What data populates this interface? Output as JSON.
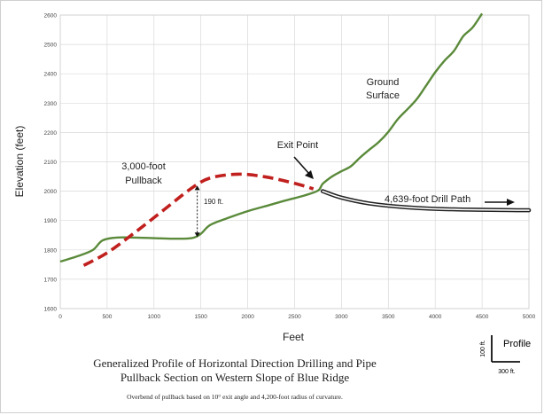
{
  "chart_data": {
    "type": "line",
    "xlabel": "Feet",
    "ylabel": "Elevation (feet)",
    "xlim": [
      0,
      5000
    ],
    "ylim": [
      1600,
      2600
    ],
    "xticks": [
      "0",
      "500",
      "1000",
      "1500",
      "2000",
      "2500",
      "3000",
      "3500",
      "4000",
      "4500",
      "5000"
    ],
    "yticks": [
      "1600",
      "1700",
      "1800",
      "1900",
      "2000",
      "2100",
      "2200",
      "2300",
      "2400",
      "2500",
      "2600"
    ],
    "grid": true,
    "series": [
      {
        "name": "Ground Surface",
        "color": "#5a8a3a",
        "style": "solid",
        "points": [
          [
            0,
            1760
          ],
          [
            200,
            1780
          ],
          [
            350,
            1800
          ],
          [
            450,
            1832
          ],
          [
            600,
            1842
          ],
          [
            800,
            1842
          ],
          [
            1000,
            1840
          ],
          [
            1200,
            1838
          ],
          [
            1400,
            1840
          ],
          [
            1500,
            1855
          ],
          [
            1600,
            1885
          ],
          [
            1800,
            1910
          ],
          [
            2000,
            1932
          ],
          [
            2200,
            1950
          ],
          [
            2400,
            1968
          ],
          [
            2600,
            1985
          ],
          [
            2750,
            2002
          ],
          [
            2800,
            2025
          ],
          [
            2900,
            2050
          ],
          [
            3000,
            2068
          ],
          [
            3100,
            2085
          ],
          [
            3200,
            2115
          ],
          [
            3300,
            2142
          ],
          [
            3400,
            2168
          ],
          [
            3500,
            2202
          ],
          [
            3600,
            2245
          ],
          [
            3700,
            2278
          ],
          [
            3800,
            2312
          ],
          [
            3900,
            2358
          ],
          [
            4000,
            2405
          ],
          [
            4100,
            2445
          ],
          [
            4200,
            2478
          ],
          [
            4300,
            2528
          ],
          [
            4400,
            2558
          ],
          [
            4500,
            2605
          ]
        ]
      },
      {
        "name": "3,000-foot Pullback",
        "color": "#c0201e",
        "style": "dashed",
        "points": [
          [
            250,
            1747
          ],
          [
            500,
            1790
          ],
          [
            800,
            1860
          ],
          [
            1100,
            1935
          ],
          [
            1400,
            2010
          ],
          [
            1600,
            2045
          ],
          [
            1900,
            2058
          ],
          [
            2200,
            2048
          ],
          [
            2500,
            2027
          ],
          [
            2700,
            2008
          ]
        ]
      },
      {
        "name": "4,639-foot Drill Path",
        "color": "#222222",
        "style": "double",
        "points": [
          [
            2800,
            2000
          ],
          [
            3000,
            1978
          ],
          [
            3300,
            1958
          ],
          [
            3700,
            1945
          ],
          [
            4200,
            1938
          ],
          [
            5000,
            1935
          ]
        ]
      }
    ],
    "annotations": {
      "ground": [
        "Ground",
        "Surface"
      ],
      "exit": "Exit Point",
      "pullback": [
        "3,000-foot",
        "Pullback"
      ],
      "drill": "4,639-foot Drill Path",
      "offset": "190 ft.",
      "offset_x": 1490,
      "offset_from": 2025,
      "offset_to": 1838
    },
    "scale_key": {
      "label": "Profile",
      "vertical": "100 ft.",
      "horizontal": "300 ft."
    }
  },
  "caption": {
    "title_line1": "Generalized Profile of Horizontal Direction Drilling and Pipe",
    "title_line2": "Pullback Section on Western Slope of Blue Ridge",
    "note": "Overbend of pullback based on 10° exit angle and 4,200-foot radius of curvature."
  }
}
